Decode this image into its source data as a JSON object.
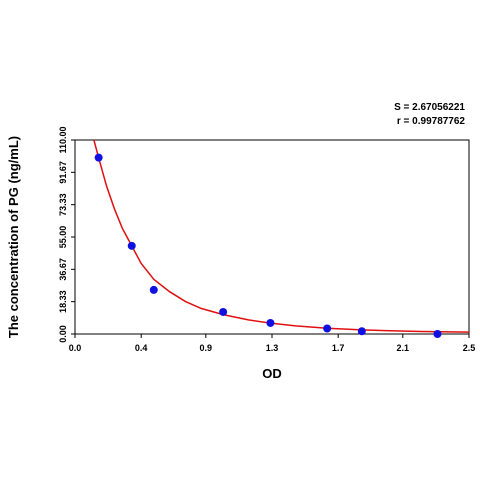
{
  "stats": {
    "s_label": "S = 2.67056221",
    "r_label": "r = 0.99787762"
  },
  "chart_data": {
    "type": "scatter",
    "xlabel": "OD",
    "ylabel": "The concentration of PG (ng/mL)",
    "xlim": [
      0.0,
      2.5
    ],
    "ylim": [
      0.0,
      110.0
    ],
    "x_ticks": [
      "0.0",
      "0.4",
      "0.9",
      "1.3",
      "1.7",
      "2.1",
      "2.5"
    ],
    "x_tick_values": [
      0.0,
      0.42,
      0.83,
      1.25,
      1.67,
      2.08,
      2.5
    ],
    "y_ticks": [
      "0.00",
      "18.33",
      "36.67",
      "55.00",
      "73.33",
      "91.67",
      "110.00"
    ],
    "y_tick_values": [
      0.0,
      18.33,
      36.67,
      55.0,
      73.33,
      91.67,
      110.0
    ],
    "grid": false,
    "point_color": "#1010e0",
    "curve_color": "#e01010",
    "points": [
      {
        "x": 0.15,
        "y": 100
      },
      {
        "x": 0.36,
        "y": 50
      },
      {
        "x": 0.5,
        "y": 25
      },
      {
        "x": 0.94,
        "y": 12.5
      },
      {
        "x": 1.24,
        "y": 6.25
      },
      {
        "x": 1.6,
        "y": 3.12
      },
      {
        "x": 1.82,
        "y": 1.56
      },
      {
        "x": 2.3,
        "y": 0
      }
    ],
    "fit_curve": [
      {
        "x": 0.12,
        "y": 111
      },
      {
        "x": 0.15,
        "y": 100
      },
      {
        "x": 0.2,
        "y": 84
      },
      {
        "x": 0.25,
        "y": 71
      },
      {
        "x": 0.3,
        "y": 60
      },
      {
        "x": 0.36,
        "y": 50
      },
      {
        "x": 0.42,
        "y": 40
      },
      {
        "x": 0.5,
        "y": 31
      },
      {
        "x": 0.6,
        "y": 24
      },
      {
        "x": 0.7,
        "y": 18.5
      },
      {
        "x": 0.8,
        "y": 14.5
      },
      {
        "x": 0.94,
        "y": 11
      },
      {
        "x": 1.1,
        "y": 8
      },
      {
        "x": 1.24,
        "y": 6.2
      },
      {
        "x": 1.4,
        "y": 4.6
      },
      {
        "x": 1.6,
        "y": 3.3
      },
      {
        "x": 1.82,
        "y": 2.3
      },
      {
        "x": 2.0,
        "y": 1.8
      },
      {
        "x": 2.2,
        "y": 1.4
      },
      {
        "x": 2.5,
        "y": 1.1
      }
    ]
  }
}
